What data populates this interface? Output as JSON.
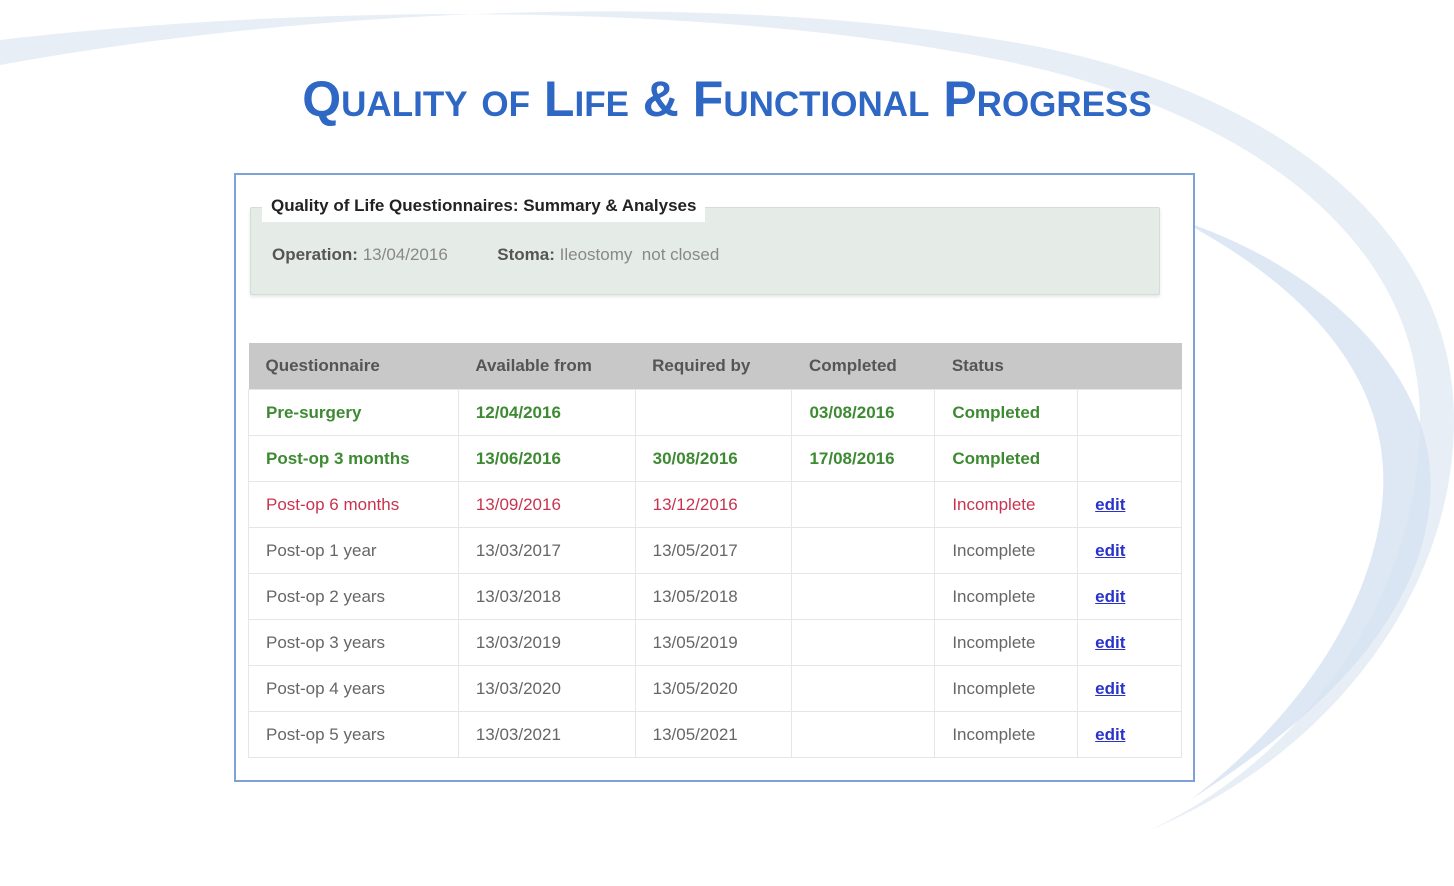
{
  "slide": {
    "title": "Quality of Life & Functional Progress"
  },
  "summary": {
    "legend": "Quality of Life Questionnaires: Summary & Analyses",
    "operation_label": "Operation:",
    "operation_value": "13/04/2016",
    "stoma_label": "Stoma:",
    "stoma_value": "Ileostomy  not closed"
  },
  "table": {
    "headers": [
      "Questionnaire",
      "Available from",
      "Required by",
      "Completed",
      "Status",
      ""
    ],
    "rows": [
      {
        "questionnaire": "Pre-surgery",
        "available": "12/04/2016",
        "required": "",
        "completed": "03/08/2016",
        "status": "Completed",
        "action": "",
        "state": "green"
      },
      {
        "questionnaire": "Post-op 3 months",
        "available": "13/06/2016",
        "required": "30/08/2016",
        "completed": "17/08/2016",
        "status": "Completed",
        "action": "",
        "state": "green"
      },
      {
        "questionnaire": "Post-op 6 months",
        "available": "13/09/2016",
        "required": "13/12/2016",
        "completed": "",
        "status": "Incomplete",
        "action": "edit",
        "state": "red"
      },
      {
        "questionnaire": "Post-op 1 year",
        "available": "13/03/2017",
        "required": "13/05/2017",
        "completed": "",
        "status": "Incomplete",
        "action": "edit",
        "state": "normal"
      },
      {
        "questionnaire": "Post-op 2 years",
        "available": "13/03/2018",
        "required": "13/05/2018",
        "completed": "",
        "status": "Incomplete",
        "action": "edit",
        "state": "normal"
      },
      {
        "questionnaire": "Post-op 3 years",
        "available": "13/03/2019",
        "required": "13/05/2019",
        "completed": "",
        "status": "Incomplete",
        "action": "edit",
        "state": "normal"
      },
      {
        "questionnaire": "Post-op 4 years",
        "available": "13/03/2020",
        "required": "13/05/2020",
        "completed": "",
        "status": "Incomplete",
        "action": "edit",
        "state": "normal"
      },
      {
        "questionnaire": "Post-op 5 years",
        "available": "13/03/2021",
        "required": "13/05/2021",
        "completed": "",
        "status": "Incomplete",
        "action": "edit",
        "state": "normal"
      }
    ]
  },
  "colors": {
    "title": "#2f67c4",
    "completed": "#3e8a33",
    "overdue": "#c8334f",
    "link": "#2a33c9",
    "header_bg": "#c8c8c8",
    "summary_bg": "#e5ece8",
    "panel_border": "#7ea2d8"
  }
}
